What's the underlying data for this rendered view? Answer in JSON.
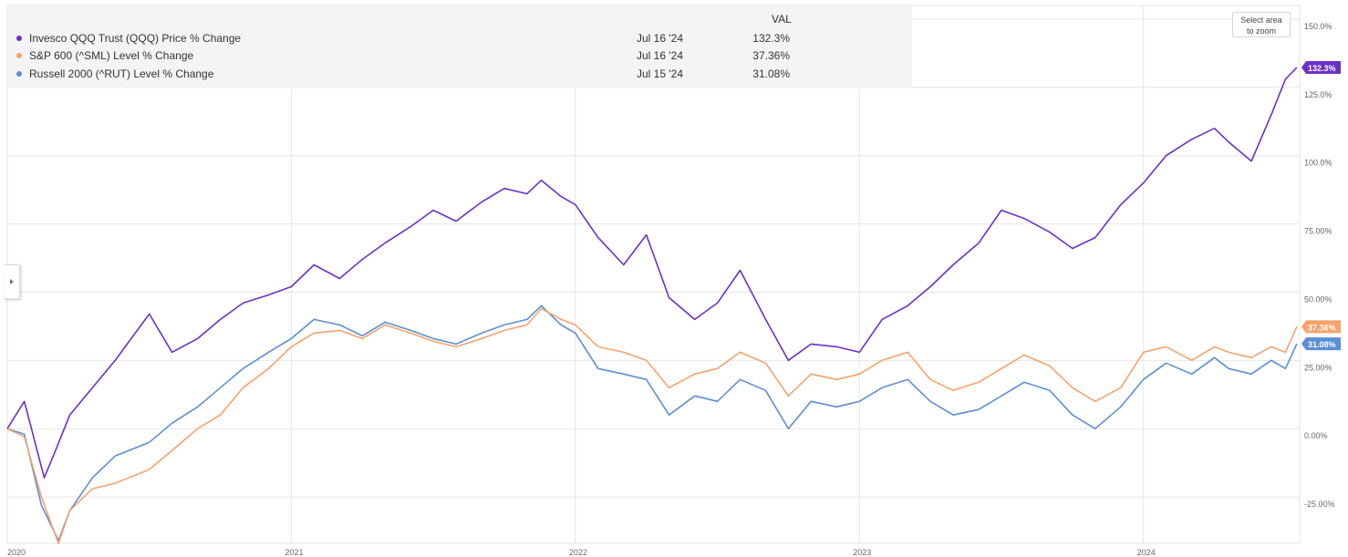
{
  "legend": {
    "header": "VAL",
    "rows": [
      {
        "name": "Invesco QQQ Trust (QQQ) Price % Change",
        "date": "Jul 16 '24",
        "value": "132.3%",
        "color": "#6b31c7"
      },
      {
        "name": "S&P 600 (^SML) Level % Change",
        "date": "Jul 16 '24",
        "value": "37.36%",
        "color": "#f7a26b"
      },
      {
        "name": "Russell 2000 (^RUT) Level % Change",
        "date": "Jul 15 '24",
        "value": "31.08%",
        "color": "#5b8fd6"
      }
    ]
  },
  "zoom_button": {
    "line1": "Select area",
    "line2": "to zoom"
  },
  "chart_data": {
    "type": "line",
    "x_ticks": [
      "2020",
      "2021",
      "2022",
      "2023",
      "2024"
    ],
    "y_ticks": [
      "150.0%",
      "125.0%",
      "100.0%",
      "75.00%",
      "50.00%",
      "25.00%",
      "0.00%",
      "-25.00%"
    ],
    "y_tick_values": [
      150,
      125,
      100,
      75,
      50,
      25,
      0,
      -25
    ],
    "ylim": [
      -42,
      155
    ],
    "xlim": [
      2020.0,
      2024.55
    ],
    "grid": true,
    "end_labels": [
      "132.3%",
      "37.36%",
      "31.08%"
    ],
    "series": [
      {
        "name": "Invesco QQQ Trust (QQQ) Price % Change",
        "color": "#6b31c7",
        "x": [
          2020.0,
          2020.06,
          2020.13,
          2020.17,
          2020.22,
          2020.3,
          2020.38,
          2020.5,
          2020.58,
          2020.67,
          2020.75,
          2020.83,
          2020.92,
          2021.0,
          2021.08,
          2021.17,
          2021.25,
          2021.33,
          2021.42,
          2021.5,
          2021.58,
          2021.67,
          2021.75,
          2021.83,
          2021.88,
          2021.95,
          2022.0,
          2022.08,
          2022.17,
          2022.25,
          2022.33,
          2022.42,
          2022.5,
          2022.58,
          2022.67,
          2022.75,
          2022.83,
          2022.92,
          2023.0,
          2023.08,
          2023.17,
          2023.25,
          2023.33,
          2023.42,
          2023.5,
          2023.58,
          2023.67,
          2023.75,
          2023.83,
          2023.92,
          2024.0,
          2024.08,
          2024.17,
          2024.25,
          2024.3,
          2024.38,
          2024.45,
          2024.5,
          2024.54
        ],
        "values": [
          0,
          10,
          -18,
          -8,
          5,
          15,
          25,
          42,
          28,
          33,
          40,
          46,
          49,
          52,
          60,
          55,
          62,
          68,
          74,
          80,
          76,
          83,
          88,
          86,
          91,
          85,
          82,
          70,
          60,
          71,
          48,
          40,
          46,
          58,
          40,
          25,
          31,
          30,
          28,
          40,
          45,
          52,
          60,
          68,
          80,
          77,
          72,
          66,
          70,
          82,
          90,
          100,
          106,
          110,
          105,
          98,
          115,
          128,
          132.3
        ]
      },
      {
        "name": "S&P 600 (^SML) Level % Change",
        "color": "#f7a26b",
        "x": [
          2020.0,
          2020.06,
          2020.12,
          2020.18,
          2020.22,
          2020.3,
          2020.38,
          2020.5,
          2020.58,
          2020.67,
          2020.75,
          2020.83,
          2020.92,
          2021.0,
          2021.08,
          2021.17,
          2021.25,
          2021.33,
          2021.42,
          2021.5,
          2021.58,
          2021.67,
          2021.75,
          2021.83,
          2021.88,
          2021.95,
          2022.0,
          2022.08,
          2022.17,
          2022.25,
          2022.33,
          2022.42,
          2022.5,
          2022.58,
          2022.67,
          2022.75,
          2022.83,
          2022.92,
          2023.0,
          2023.08,
          2023.17,
          2023.25,
          2023.33,
          2023.42,
          2023.5,
          2023.58,
          2023.67,
          2023.75,
          2023.83,
          2023.92,
          2024.0,
          2024.08,
          2024.17,
          2024.25,
          2024.3,
          2024.38,
          2024.45,
          2024.5,
          2024.54
        ],
        "values": [
          0,
          -3,
          -25,
          -42,
          -30,
          -22,
          -20,
          -15,
          -8,
          0,
          5,
          15,
          22,
          30,
          35,
          36,
          33,
          38,
          35,
          32,
          30,
          33,
          36,
          38,
          44,
          40,
          38,
          30,
          28,
          25,
          15,
          20,
          22,
          28,
          24,
          12,
          20,
          18,
          20,
          25,
          28,
          18,
          14,
          17,
          22,
          27,
          23,
          15,
          10,
          15,
          28,
          30,
          25,
          30,
          28,
          26,
          30,
          28,
          37.36
        ]
      },
      {
        "name": "Russell 2000 (^RUT) Level % Change",
        "color": "#5b8fd6",
        "x": [
          2020.0,
          2020.06,
          2020.12,
          2020.18,
          2020.22,
          2020.3,
          2020.38,
          2020.5,
          2020.58,
          2020.67,
          2020.75,
          2020.83,
          2020.92,
          2021.0,
          2021.08,
          2021.17,
          2021.25,
          2021.33,
          2021.42,
          2021.5,
          2021.58,
          2021.67,
          2021.75,
          2021.83,
          2021.88,
          2021.95,
          2022.0,
          2022.08,
          2022.17,
          2022.25,
          2022.33,
          2022.42,
          2022.5,
          2022.58,
          2022.67,
          2022.75,
          2022.83,
          2022.92,
          2023.0,
          2023.08,
          2023.17,
          2023.25,
          2023.33,
          2023.42,
          2023.5,
          2023.58,
          2023.67,
          2023.75,
          2023.83,
          2023.92,
          2024.0,
          2024.08,
          2024.17,
          2024.25,
          2024.3,
          2024.38,
          2024.45,
          2024.5,
          2024.54
        ],
        "values": [
          0,
          -2,
          -28,
          -41,
          -30,
          -18,
          -10,
          -5,
          2,
          8,
          15,
          22,
          28,
          33,
          40,
          38,
          34,
          39,
          36,
          33,
          31,
          35,
          38,
          40,
          45,
          38,
          35,
          22,
          20,
          18,
          5,
          12,
          10,
          18,
          14,
          0,
          10,
          8,
          10,
          15,
          18,
          10,
          5,
          7,
          12,
          17,
          14,
          5,
          0,
          8,
          18,
          24,
          20,
          26,
          22,
          20,
          25,
          22,
          31.08
        ]
      }
    ]
  }
}
